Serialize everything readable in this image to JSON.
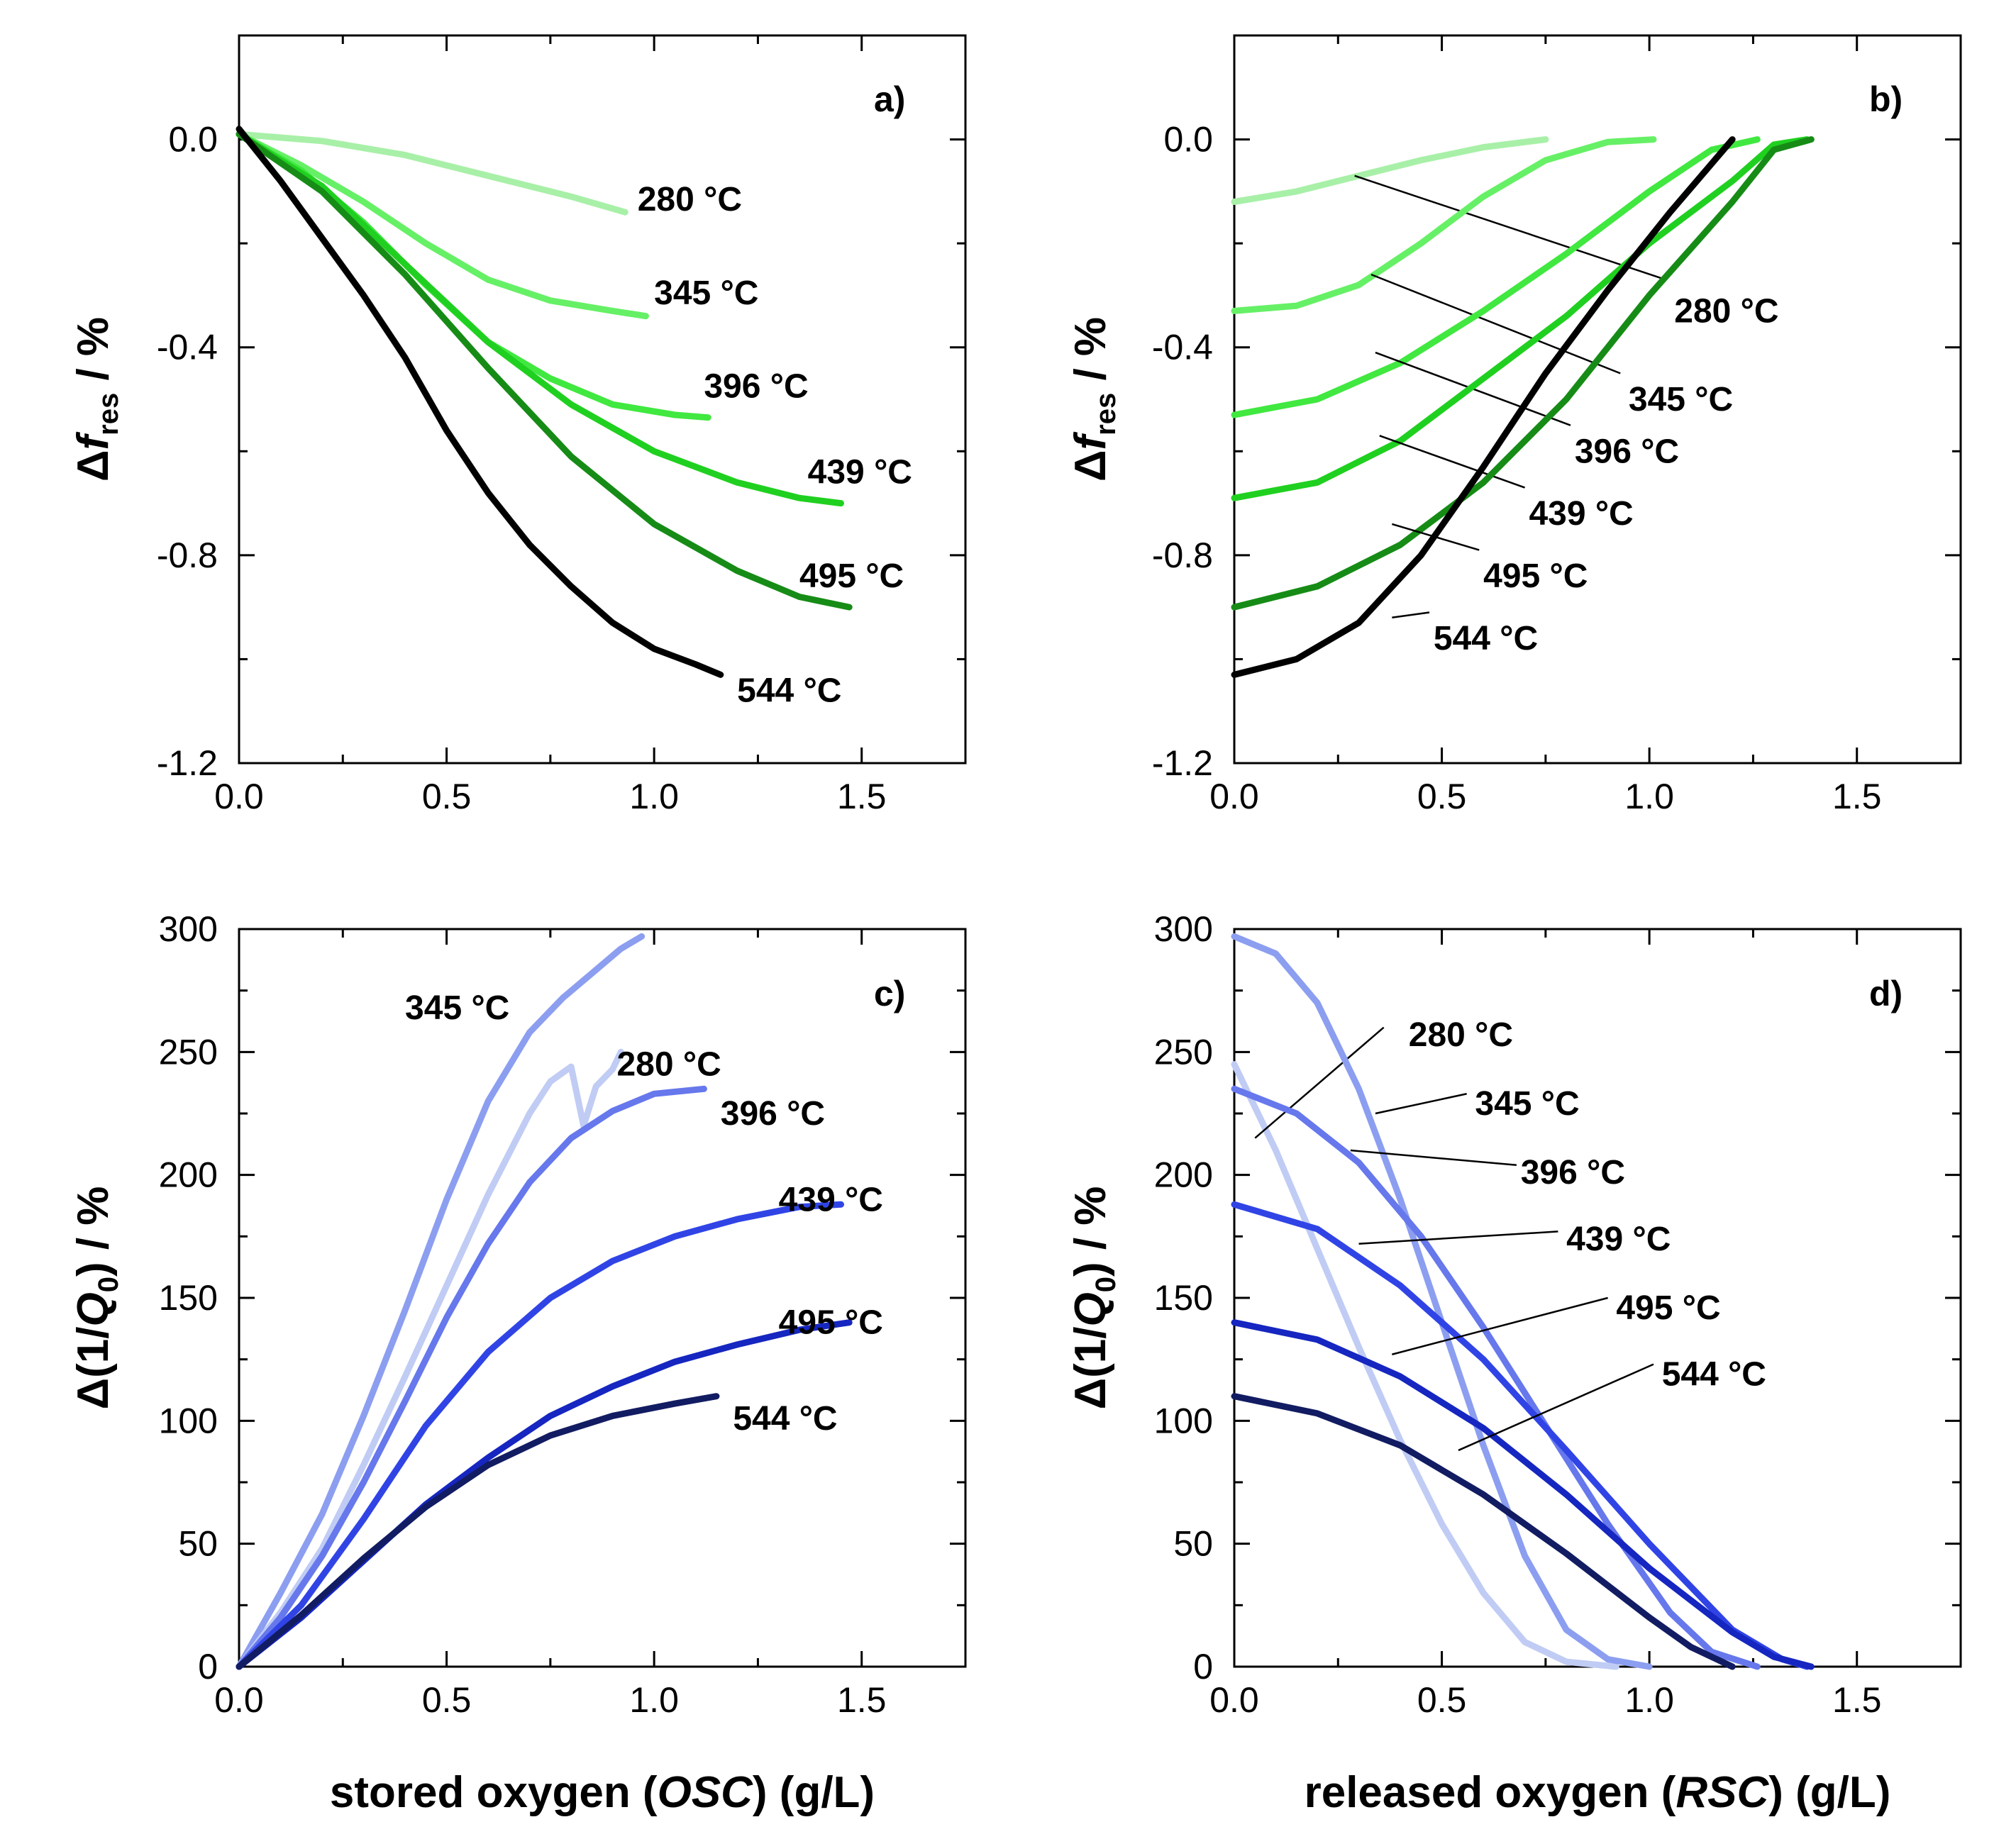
{
  "colors": {
    "green": {
      "280": "#a8f0a8",
      "345": "#66f066",
      "396": "#40e840",
      "439": "#20d020",
      "495": "#168c16",
      "544": "#000000"
    },
    "blue": {
      "280": "#c0ccf4",
      "345": "#8c9ef0",
      "396": "#6678ec",
      "439": "#3044e6",
      "495": "#1626c0",
      "544": "#121c62"
    }
  },
  "axes": {
    "x_label_c": "stored oxygen (OSC) (g/L)",
    "x_label_d": "released oxygen (RSC) (g/L)",
    "x_label_c_parts": [
      "stored oxygen (",
      "OSC",
      ") (g/L)"
    ],
    "x_label_d_parts": [
      "released oxygen (",
      "RSC",
      ") (g/L)"
    ],
    "y_label_ab": "Δf_res / %",
    "y_label_ab_parts": [
      "Δ",
      "f",
      "res",
      " / %"
    ],
    "y_label_cd": "Δ(1/Q_0) / %",
    "y_label_cd_parts": [
      "Δ(1/",
      "Q",
      "0",
      ") / %"
    ]
  },
  "chart_data": [
    {
      "panel": "a)",
      "type": "line",
      "xlim": [
        0,
        1.75
      ],
      "ylim": [
        -1.2,
        0.2
      ],
      "xticks": [
        "0.0",
        "0.5",
        "1.0",
        "1.5"
      ],
      "yticks": [
        "0.0",
        "-0.4",
        "-0.8",
        "-1.2"
      ],
      "xlabel": "",
      "ylabel": "Δf_res / %",
      "series": [
        {
          "name": "280 °C",
          "color_key": "280",
          "label_at": [
            0.96,
            -0.115
          ],
          "x": [
            0,
            0.2,
            0.4,
            0.6,
            0.8,
            0.93
          ],
          "y": [
            0.01,
            -0.003,
            -0.03,
            -0.07,
            -0.11,
            -0.14
          ]
        },
        {
          "name": "345 °C",
          "color_key": "345",
          "label_at": [
            1.0,
            -0.295
          ],
          "x": [
            0,
            0.15,
            0.3,
            0.45,
            0.6,
            0.75,
            0.9,
            0.98
          ],
          "y": [
            0.01,
            -0.05,
            -0.12,
            -0.2,
            -0.27,
            -0.31,
            -0.33,
            -0.34
          ]
        },
        {
          "name": "396 °C",
          "color_key": "396",
          "label_at": [
            1.12,
            -0.475
          ],
          "x": [
            0,
            0.15,
            0.3,
            0.45,
            0.6,
            0.75,
            0.9,
            1.05,
            1.13
          ],
          "y": [
            0.01,
            -0.06,
            -0.16,
            -0.28,
            -0.39,
            -0.46,
            -0.51,
            -0.53,
            -0.535
          ]
        },
        {
          "name": "439 °C",
          "color_key": "439",
          "label_at": [
            1.37,
            -0.64
          ],
          "x": [
            0,
            0.2,
            0.4,
            0.6,
            0.8,
            1.0,
            1.2,
            1.35,
            1.45
          ],
          "y": [
            0.01,
            -0.09,
            -0.24,
            -0.39,
            -0.51,
            -0.6,
            -0.66,
            -0.69,
            -0.7
          ]
        },
        {
          "name": "495 °C",
          "color_key": "495",
          "label_at": [
            1.35,
            -0.84
          ],
          "x": [
            0,
            0.2,
            0.4,
            0.6,
            0.8,
            1.0,
            1.2,
            1.35,
            1.47
          ],
          "y": [
            0.01,
            -0.1,
            -0.26,
            -0.44,
            -0.61,
            -0.74,
            -0.83,
            -0.88,
            -0.9
          ]
        },
        {
          "name": "544 °C",
          "color_key": "544",
          "label_at": [
            1.2,
            -1.06
          ],
          "x": [
            0,
            0.1,
            0.2,
            0.3,
            0.4,
            0.5,
            0.6,
            0.7,
            0.8,
            0.9,
            1.0,
            1.1,
            1.16
          ],
          "y": [
            0.02,
            -0.08,
            -0.19,
            -0.3,
            -0.42,
            -0.56,
            -0.68,
            -0.78,
            -0.86,
            -0.93,
            -0.98,
            -1.01,
            -1.03
          ]
        }
      ]
    },
    {
      "panel": "b)",
      "type": "line",
      "xlim": [
        0,
        1.75
      ],
      "ylim": [
        -1.2,
        0.2
      ],
      "xticks": [
        "0.0",
        "0.5",
        "1.0",
        "1.5"
      ],
      "yticks": [
        "0.0",
        "-0.4",
        "-0.8",
        "-1.2"
      ],
      "xlabel": "",
      "ylabel": "Δf_res / %",
      "series": [
        {
          "name": "280 °C",
          "color_key": "280",
          "label_at": [
            1.06,
            -0.33
          ],
          "leader": [
            [
              0.29,
              -0.07
            ],
            [
              1.04,
              -0.27
            ]
          ],
          "x": [
            0,
            0.15,
            0.3,
            0.45,
            0.6,
            0.75
          ],
          "y": [
            -0.12,
            -0.1,
            -0.07,
            -0.04,
            -0.015,
            0.0
          ]
        },
        {
          "name": "345 °C",
          "color_key": "345",
          "label_at": [
            0.95,
            -0.5
          ],
          "leader": [
            [
              0.33,
              -0.26
            ],
            [
              0.93,
              -0.45
            ]
          ],
          "x": [
            0,
            0.15,
            0.3,
            0.45,
            0.6,
            0.75,
            0.9,
            1.01
          ],
          "y": [
            -0.33,
            -0.32,
            -0.28,
            -0.2,
            -0.11,
            -0.04,
            -0.005,
            0.0
          ]
        },
        {
          "name": "396 °C",
          "color_key": "396",
          "label_at": [
            0.82,
            -0.6
          ],
          "leader": [
            [
              0.34,
              -0.41
            ],
            [
              0.81,
              -0.55
            ]
          ],
          "x": [
            0,
            0.2,
            0.4,
            0.6,
            0.8,
            1.0,
            1.15,
            1.26
          ],
          "y": [
            -0.53,
            -0.5,
            -0.43,
            -0.33,
            -0.22,
            -0.1,
            -0.02,
            0.0
          ]
        },
        {
          "name": "439 °C",
          "color_key": "439",
          "label_at": [
            0.71,
            -0.72
          ],
          "leader": [
            [
              0.35,
              -0.57
            ],
            [
              0.7,
              -0.67
            ]
          ],
          "x": [
            0,
            0.2,
            0.4,
            0.6,
            0.8,
            1.0,
            1.2,
            1.3,
            1.38
          ],
          "y": [
            -0.69,
            -0.66,
            -0.58,
            -0.46,
            -0.34,
            -0.2,
            -0.08,
            -0.01,
            0.0
          ]
        },
        {
          "name": "495 °C",
          "color_key": "495",
          "label_at": [
            0.6,
            -0.84
          ],
          "leader": [
            [
              0.38,
              -0.74
            ],
            [
              0.59,
              -0.79
            ]
          ],
          "x": [
            0,
            0.2,
            0.4,
            0.6,
            0.8,
            1.0,
            1.2,
            1.3,
            1.39
          ],
          "y": [
            -0.9,
            -0.86,
            -0.78,
            -0.66,
            -0.5,
            -0.3,
            -0.12,
            -0.02,
            0.0
          ]
        },
        {
          "name": "544 °C",
          "color_key": "544",
          "label_at": [
            0.48,
            -0.96
          ],
          "leader": [
            [
              0.38,
              -0.92
            ],
            [
              0.47,
              -0.91
            ]
          ],
          "x": [
            0,
            0.15,
            0.3,
            0.45,
            0.6,
            0.75,
            0.9,
            1.05,
            1.2
          ],
          "y": [
            -1.03,
            -1.0,
            -0.93,
            -0.8,
            -0.63,
            -0.45,
            -0.29,
            -0.14,
            0.0
          ]
        }
      ]
    },
    {
      "panel": "c)",
      "type": "line",
      "xlim": [
        0,
        1.75
      ],
      "ylim": [
        0,
        300
      ],
      "xticks": [
        "0.0",
        "0.5",
        "1.0",
        "1.5"
      ],
      "yticks": [
        "0",
        "50",
        "100",
        "150",
        "200",
        "250",
        "300"
      ],
      "xlabel": "stored oxygen (OSC) (g/L)",
      "ylabel": "Δ(1/Q_0) / %",
      "series": [
        {
          "name": "345 °C",
          "color_key": "345",
          "label_at": [
            0.4,
            268
          ],
          "x": [
            0,
            0.1,
            0.2,
            0.3,
            0.4,
            0.5,
            0.6,
            0.7,
            0.78,
            0.85,
            0.92,
            0.97
          ],
          "y": [
            0,
            30,
            62,
            102,
            145,
            190,
            230,
            258,
            272,
            282,
            292,
            297
          ]
        },
        {
          "name": "280 °C",
          "color_key": "280",
          "label_at": [
            0.91,
            245
          ],
          "x": [
            0,
            0.1,
            0.2,
            0.3,
            0.4,
            0.5,
            0.6,
            0.7,
            0.75,
            0.8,
            0.83,
            0.86,
            0.9,
            0.92
          ],
          "y": [
            0,
            22,
            48,
            82,
            118,
            155,
            192,
            225,
            238,
            244,
            220,
            236,
            243,
            250
          ]
        },
        {
          "name": "396 °C",
          "color_key": "396",
          "label_at": [
            1.16,
            225
          ],
          "x": [
            0,
            0.1,
            0.2,
            0.3,
            0.4,
            0.5,
            0.6,
            0.7,
            0.8,
            0.9,
            1.0,
            1.12
          ],
          "y": [
            0,
            20,
            45,
            75,
            108,
            142,
            172,
            197,
            215,
            226,
            233,
            235
          ]
        },
        {
          "name": "439 °C",
          "color_key": "439",
          "label_at": [
            1.3,
            190
          ],
          "x": [
            0,
            0.15,
            0.3,
            0.45,
            0.6,
            0.75,
            0.9,
            1.05,
            1.2,
            1.35,
            1.45
          ],
          "y": [
            0,
            25,
            60,
            98,
            128,
            150,
            165,
            175,
            182,
            187,
            188
          ]
        },
        {
          "name": "495 °C",
          "color_key": "495",
          "label_at": [
            1.3,
            140
          ],
          "x": [
            0,
            0.15,
            0.3,
            0.45,
            0.6,
            0.75,
            0.9,
            1.05,
            1.2,
            1.35,
            1.47
          ],
          "y": [
            0,
            20,
            43,
            66,
            85,
            102,
            114,
            124,
            131,
            137,
            140
          ]
        },
        {
          "name": "544 °C",
          "color_key": "544",
          "label_at": [
            1.19,
            101
          ],
          "x": [
            0,
            0.15,
            0.3,
            0.45,
            0.6,
            0.75,
            0.9,
            1.05,
            1.15
          ],
          "y": [
            0,
            21,
            44,
            65,
            82,
            94,
            102,
            107,
            110
          ]
        }
      ]
    },
    {
      "panel": "d)",
      "type": "line",
      "xlim": [
        0,
        1.75
      ],
      "ylim": [
        0,
        300
      ],
      "xticks": [
        "0.0",
        "0.5",
        "1.0",
        "1.5"
      ],
      "yticks": [
        "0",
        "50",
        "100",
        "150",
        "200",
        "250",
        "300"
      ],
      "xlabel": "released oxygen (RSC) (g/L)",
      "ylabel": "Δ(1/Q_0) / %",
      "series": [
        {
          "name": "280 °C",
          "color_key": "280",
          "label_at": [
            0.42,
            257
          ],
          "leader": [
            [
              0.05,
              215
            ],
            [
              0.36,
              260
            ]
          ],
          "x": [
            0,
            0.1,
            0.2,
            0.3,
            0.4,
            0.5,
            0.6,
            0.7,
            0.8,
            0.92
          ],
          "y": [
            245,
            210,
            170,
            130,
            92,
            58,
            30,
            10,
            2,
            0
          ]
        },
        {
          "name": "345 °C",
          "color_key": "345",
          "label_at": [
            0.58,
            229
          ],
          "leader": [
            [
              0.34,
              225
            ],
            [
              0.56,
              233
            ]
          ],
          "x": [
            0,
            0.1,
            0.2,
            0.3,
            0.4,
            0.5,
            0.6,
            0.7,
            0.8,
            0.9,
            1.0
          ],
          "y": [
            297,
            290,
            270,
            235,
            190,
            140,
            90,
            45,
            15,
            3,
            0
          ]
        },
        {
          "name": "396 °C",
          "color_key": "396",
          "label_at": [
            0.69,
            201
          ],
          "leader": [
            [
              0.28,
              210
            ],
            [
              0.68,
              204
            ]
          ],
          "x": [
            0,
            0.15,
            0.3,
            0.45,
            0.6,
            0.75,
            0.9,
            1.05,
            1.15,
            1.26
          ],
          "y": [
            235,
            225,
            205,
            175,
            138,
            98,
            58,
            22,
            6,
            0
          ]
        },
        {
          "name": "439 °C",
          "color_key": "439",
          "label_at": [
            0.8,
            174
          ],
          "leader": [
            [
              0.3,
              172
            ],
            [
              0.78,
              177
            ]
          ],
          "x": [
            0,
            0.2,
            0.4,
            0.6,
            0.8,
            1.0,
            1.2,
            1.32,
            1.38
          ],
          "y": [
            188,
            178,
            155,
            125,
            88,
            50,
            15,
            3,
            0
          ]
        },
        {
          "name": "495 °C",
          "color_key": "495",
          "label_at": [
            0.92,
            146
          ],
          "leader": [
            [
              0.38,
              127
            ],
            [
              0.9,
              150
            ]
          ],
          "x": [
            0,
            0.2,
            0.4,
            0.6,
            0.8,
            1.0,
            1.2,
            1.3,
            1.39
          ],
          "y": [
            140,
            133,
            118,
            97,
            70,
            40,
            14,
            4,
            0
          ]
        },
        {
          "name": "544 °C",
          "color_key": "544",
          "label_at": [
            1.03,
            119
          ],
          "leader": [
            [
              0.54,
              88
            ],
            [
              1.01,
              123
            ]
          ],
          "x": [
            0,
            0.2,
            0.4,
            0.6,
            0.8,
            1.0,
            1.1,
            1.2
          ],
          "y": [
            110,
            103,
            90,
            70,
            46,
            20,
            8,
            0
          ]
        }
      ]
    }
  ]
}
